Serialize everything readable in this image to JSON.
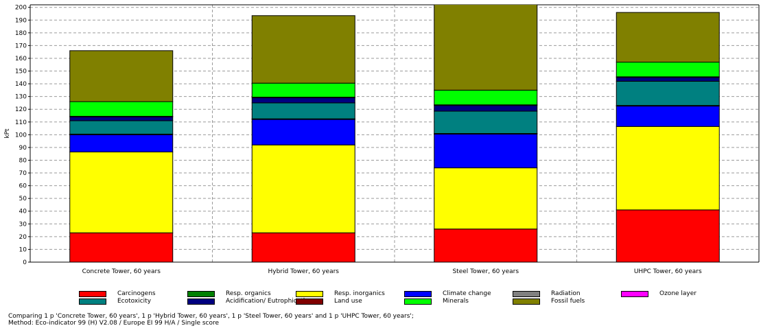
{
  "chart_data": {
    "type": "bar",
    "stacked": true,
    "ylabel": "kPt",
    "ylim": [
      0,
      202
    ],
    "yticks": [
      0,
      10,
      20,
      30,
      40,
      50,
      60,
      70,
      80,
      90,
      100,
      110,
      120,
      130,
      140,
      150,
      160,
      170,
      180,
      190,
      200
    ],
    "grid": true,
    "legend_position": "bottom",
    "categories": [
      "Concrete Tower, 60 years",
      "Hybrid Tower, 60 years",
      "Steel Tower, 60 years",
      "UHPC Tower, 60 years"
    ],
    "series": [
      {
        "name": "Carcinogens",
        "color": "#ff0000",
        "values": [
          23,
          23,
          26,
          41
        ]
      },
      {
        "name": "Resp. organics",
        "color": "#008000",
        "values": [
          0,
          0,
          0,
          0
        ]
      },
      {
        "name": "Resp. inorganics",
        "color": "#ffff00",
        "values": [
          63.5,
          69,
          48,
          65.5
        ]
      },
      {
        "name": "Climate change",
        "color": "#0000ff",
        "values": [
          13.5,
          20,
          26.5,
          16
        ]
      },
      {
        "name": "Radiation",
        "color": "#808080",
        "values": [
          0.3,
          0.3,
          0.3,
          0.3
        ]
      },
      {
        "name": "Ozone layer",
        "color": "#ff00ff",
        "values": [
          0.2,
          0.2,
          0.2,
          0.2
        ]
      },
      {
        "name": "Ecotoxicity",
        "color": "#008080",
        "values": [
          10.5,
          12.5,
          17.5,
          19
        ]
      },
      {
        "name": "Acidification/ Eutrophication",
        "color": "#000080",
        "values": [
          3,
          4,
          4.5,
          3
        ]
      },
      {
        "name": "Land use",
        "color": "#800000",
        "values": [
          0.5,
          0.5,
          0.5,
          0.5
        ]
      },
      {
        "name": "Minerals",
        "color": "#00ff00",
        "values": [
          11.5,
          11,
          11.5,
          11.5
        ]
      },
      {
        "name": "Fossil fuels",
        "color": "#808000",
        "values": [
          40,
          53,
          68,
          39
        ]
      }
    ]
  },
  "legend": {
    "columns": [
      [
        "Carcinogens",
        "Ecotoxicity"
      ],
      [
        "Resp. organics",
        "Acidification/ Eutrophication"
      ],
      [
        "Resp. inorganics",
        "Land use"
      ],
      [
        "Climate change",
        "Minerals"
      ],
      [
        "Radiation",
        "Fossil fuels"
      ],
      [
        "Ozone layer"
      ]
    ]
  },
  "caption": {
    "line1": "Comparing 1 p 'Concrete Tower, 60 years', 1 p 'Hybrid Tower, 60 years', 1 p 'Steel Tower, 60 years' and 1 p 'UHPC Tower, 60 years';",
    "line2": "Method: Eco-indicator 99 (H) V2.08 / Europe EI 99 H/A / Single score"
  }
}
